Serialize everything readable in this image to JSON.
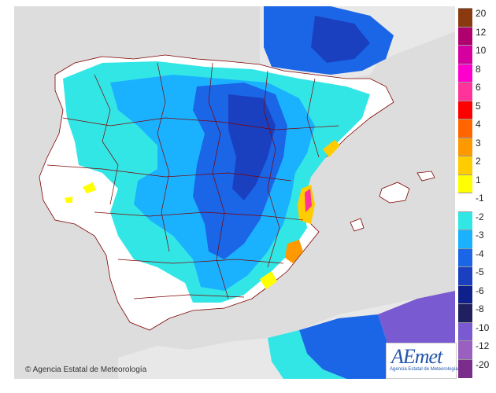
{
  "credit": {
    "symbol": "©",
    "text": "Agencia Estatal de Meteorología"
  },
  "logo": {
    "word": "AEmet",
    "subtitle": "Agencia Estatal de Meteorología"
  },
  "legend": {
    "items": [
      {
        "label": "20",
        "color": "#8b3a0f"
      },
      {
        "label": "12",
        "color": "#b0006e"
      },
      {
        "label": "10",
        "color": "#d600a0"
      },
      {
        "label": "8",
        "color": "#ff00cc"
      },
      {
        "label": "6",
        "color": "#ff3399"
      },
      {
        "label": "5",
        "color": "#ff0000"
      },
      {
        "label": "4",
        "color": "#ff6600"
      },
      {
        "label": "3",
        "color": "#ff9900"
      },
      {
        "label": "2",
        "color": "#ffcc00"
      },
      {
        "label": "1",
        "color": "#ffff00"
      },
      {
        "label": "-1",
        "color": "#ffffff"
      },
      {
        "label": "-2",
        "color": "#33e6e6"
      },
      {
        "label": "-3",
        "color": "#1ab2ff"
      },
      {
        "label": "-4",
        "color": "#1a66e6"
      },
      {
        "label": "-5",
        "color": "#1a40c0"
      },
      {
        "label": "-6",
        "color": "#10208a"
      },
      {
        "label": "-8",
        "color": "#202060"
      },
      {
        "label": "-10",
        "color": "#7a5ad0"
      },
      {
        "label": "-12",
        "color": "#9a60c0"
      },
      {
        "label": "-20",
        "color": "#7b2d8b"
      }
    ]
  },
  "colors": {
    "sea": "#dddddd",
    "land_neutral": "#ffffff",
    "borders": "#800000"
  }
}
